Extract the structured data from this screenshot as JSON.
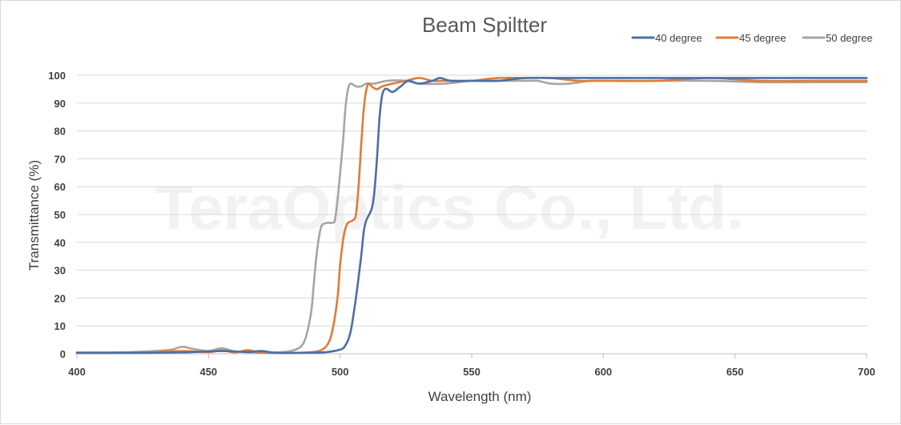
{
  "chart_data": {
    "type": "line",
    "title": "Beam Spiltter",
    "xlabel": "Wavelength  (nm)",
    "ylabel": "Transmittance (%)",
    "xlim": [
      400,
      700
    ],
    "ylim": [
      0,
      100
    ],
    "x_ticks": [
      400,
      450,
      500,
      550,
      600,
      650,
      700
    ],
    "y_ticks": [
      0,
      10,
      20,
      30,
      40,
      50,
      60,
      70,
      80,
      90,
      100
    ],
    "grid": "horizontal",
    "legend_position": "top-right",
    "watermark": "TeraOptics Co., Ltd.",
    "series": [
      {
        "name": "40 degree",
        "color": "#4a6fa5",
        "points": [
          [
            400,
            0.3
          ],
          [
            420,
            0.3
          ],
          [
            440,
            0.5
          ],
          [
            455,
            1.0
          ],
          [
            465,
            0.6
          ],
          [
            470,
            1.0
          ],
          [
            475,
            0.4
          ],
          [
            480,
            0.3
          ],
          [
            490,
            0.4
          ],
          [
            495,
            0.6
          ],
          [
            500,
            1.5
          ],
          [
            502,
            3
          ],
          [
            504,
            8
          ],
          [
            506,
            20
          ],
          [
            508,
            35
          ],
          [
            509,
            44
          ],
          [
            510,
            48
          ],
          [
            512,
            52
          ],
          [
            513,
            58
          ],
          [
            514,
            70
          ],
          [
            515,
            85
          ],
          [
            516,
            93
          ],
          [
            517,
            95
          ],
          [
            518,
            95
          ],
          [
            520,
            94
          ],
          [
            523,
            96
          ],
          [
            526,
            98
          ],
          [
            530,
            97
          ],
          [
            535,
            98
          ],
          [
            538,
            99
          ],
          [
            542,
            98
          ],
          [
            550,
            98
          ],
          [
            560,
            98
          ],
          [
            570,
            99
          ],
          [
            580,
            99
          ],
          [
            590,
            99
          ],
          [
            600,
            99
          ],
          [
            620,
            99
          ],
          [
            640,
            99
          ],
          [
            660,
            99
          ],
          [
            680,
            99
          ],
          [
            700,
            99
          ]
        ]
      },
      {
        "name": "45 degree",
        "color": "#e07b39",
        "points": [
          [
            400,
            0.3
          ],
          [
            420,
            0.4
          ],
          [
            430,
            0.6
          ],
          [
            440,
            1.0
          ],
          [
            450,
            0.6
          ],
          [
            455,
            1.2
          ],
          [
            460,
            0.5
          ],
          [
            465,
            1.3
          ],
          [
            470,
            0.4
          ],
          [
            480,
            0.3
          ],
          [
            488,
            0.5
          ],
          [
            492,
            1
          ],
          [
            495,
            3
          ],
          [
            497,
            8
          ],
          [
            499,
            20
          ],
          [
            500,
            32
          ],
          [
            501,
            40
          ],
          [
            502,
            45
          ],
          [
            503,
            47
          ],
          [
            505,
            48
          ],
          [
            506,
            50
          ],
          [
            507,
            60
          ],
          [
            508,
            75
          ],
          [
            509,
            88
          ],
          [
            510,
            95
          ],
          [
            511,
            97
          ],
          [
            512,
            96
          ],
          [
            514,
            95
          ],
          [
            516,
            96
          ],
          [
            520,
            97
          ],
          [
            525,
            98
          ],
          [
            530,
            99
          ],
          [
            535,
            98
          ],
          [
            540,
            98
          ],
          [
            545,
            98
          ],
          [
            550,
            98
          ],
          [
            560,
            99
          ],
          [
            570,
            99
          ],
          [
            580,
            99
          ],
          [
            590,
            98
          ],
          [
            600,
            98
          ],
          [
            620,
            98
          ],
          [
            640,
            99
          ],
          [
            660,
            98
          ],
          [
            680,
            98
          ],
          [
            700,
            98
          ]
        ]
      },
      {
        "name": "50 degree",
        "color": "#a5a5a5",
        "points": [
          [
            400,
            0.5
          ],
          [
            420,
            0.6
          ],
          [
            430,
            1.0
          ],
          [
            436,
            1.5
          ],
          [
            440,
            2.5
          ],
          [
            444,
            1.8
          ],
          [
            450,
            1.0
          ],
          [
            455,
            2.0
          ],
          [
            460,
            0.8
          ],
          [
            465,
            0.6
          ],
          [
            470,
            0.4
          ],
          [
            478,
            0.6
          ],
          [
            482,
            1.2
          ],
          [
            485,
            2.5
          ],
          [
            487,
            6
          ],
          [
            489,
            15
          ],
          [
            490,
            25
          ],
          [
            491,
            35
          ],
          [
            492,
            42
          ],
          [
            493,
            46
          ],
          [
            495,
            47
          ],
          [
            497,
            47
          ],
          [
            498,
            48
          ],
          [
            499,
            55
          ],
          [
            501,
            75
          ],
          [
            502,
            88
          ],
          [
            503,
            95
          ],
          [
            504,
            97
          ],
          [
            506,
            96
          ],
          [
            508,
            96
          ],
          [
            510,
            97
          ],
          [
            513,
            97
          ],
          [
            518,
            98
          ],
          [
            525,
            98
          ],
          [
            530,
            97
          ],
          [
            540,
            97
          ],
          [
            550,
            98
          ],
          [
            560,
            98
          ],
          [
            570,
            98
          ],
          [
            575,
            98
          ],
          [
            580,
            97
          ],
          [
            587,
            97
          ],
          [
            595,
            98
          ],
          [
            600,
            98
          ],
          [
            620,
            98
          ],
          [
            640,
            98
          ],
          [
            660,
            97.5
          ],
          [
            680,
            97.5
          ],
          [
            700,
            97.5
          ]
        ]
      }
    ]
  }
}
